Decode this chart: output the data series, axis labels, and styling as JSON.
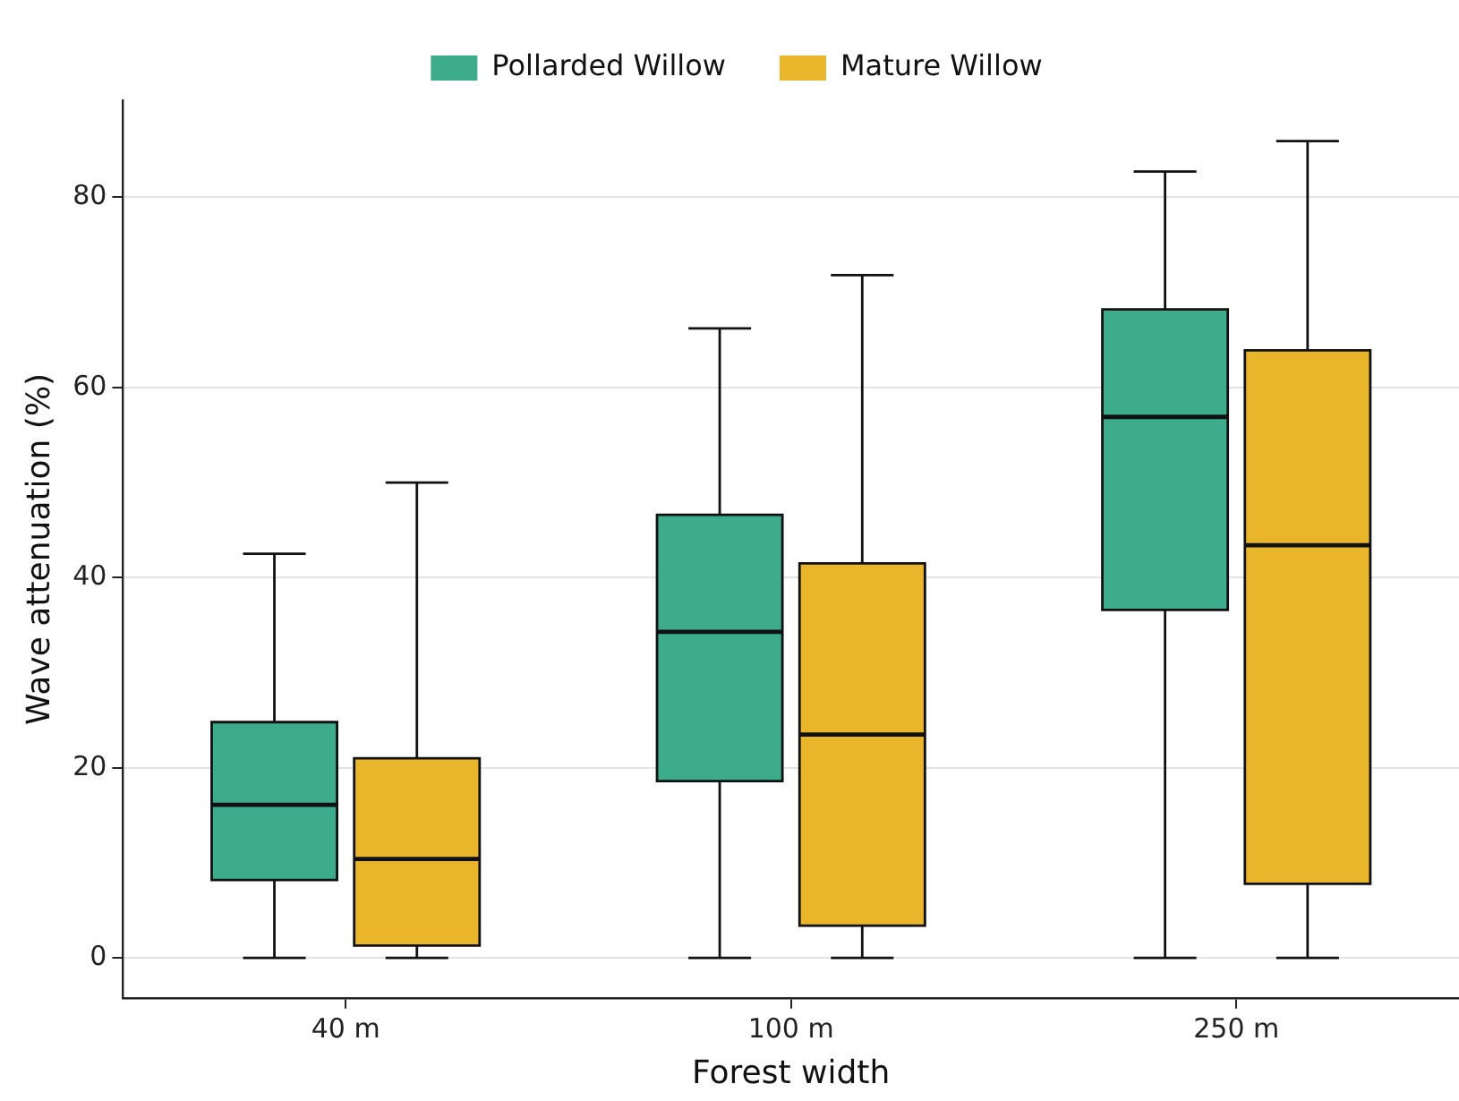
{
  "chart_data": {
    "type": "box",
    "xlabel": "Forest width",
    "ylabel": "Wave attenuation (%)",
    "categories": [
      "40 m",
      "100 m",
      "250 m"
    ],
    "ylim": [
      -4.2,
      90.2
    ],
    "yticks": [
      0,
      20,
      40,
      60,
      80
    ],
    "grid": "y",
    "legend": "top",
    "series": [
      {
        "name": "Pollarded Willow",
        "color": "#3dac8b",
        "boxes": [
          {
            "low": 0,
            "q1": 8.2,
            "median": 16.1,
            "q3": 24.8,
            "high": 42.5
          },
          {
            "low": 0,
            "q1": 18.6,
            "median": 34.3,
            "q3": 46.6,
            "high": 66.2
          },
          {
            "low": 0,
            "q1": 36.6,
            "median": 56.9,
            "q3": 68.2,
            "high": 82.7
          }
        ]
      },
      {
        "name": "Mature Willow",
        "color": "#e9b52a",
        "boxes": [
          {
            "low": 0,
            "q1": 1.3,
            "median": 10.4,
            "q3": 21.0,
            "high": 50.0
          },
          {
            "low": 0,
            "q1": 3.4,
            "median": 23.5,
            "q3": 41.5,
            "high": 71.8
          },
          {
            "low": 0,
            "q1": 7.8,
            "median": 43.4,
            "q3": 63.9,
            "high": 85.9
          }
        ]
      }
    ]
  }
}
